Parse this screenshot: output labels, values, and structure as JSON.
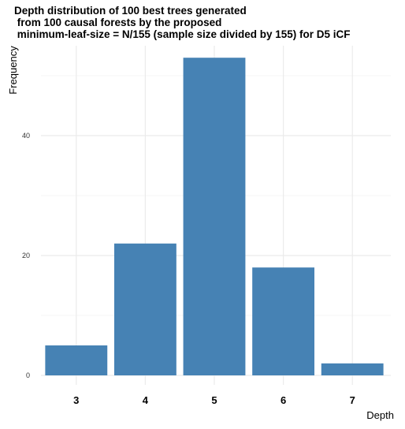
{
  "chart_data": {
    "type": "bar",
    "title": "Depth distribution of 100 best trees generated\n from 100 causal forests by the proposed\n minimum-leaf-size = N/155 (sample size divided by 155) for D5 iCF",
    "xlabel": "Depth",
    "ylabel": "Frequency",
    "categories": [
      "3",
      "4",
      "5",
      "6",
      "7"
    ],
    "values": [
      5,
      22,
      53,
      18,
      2
    ],
    "ylim": [
      0,
      55
    ],
    "yticks": [
      "0",
      "20",
      "40"
    ],
    "grid": true,
    "bar_color": "#4682b4",
    "grid_color": "#ebebeb"
  }
}
